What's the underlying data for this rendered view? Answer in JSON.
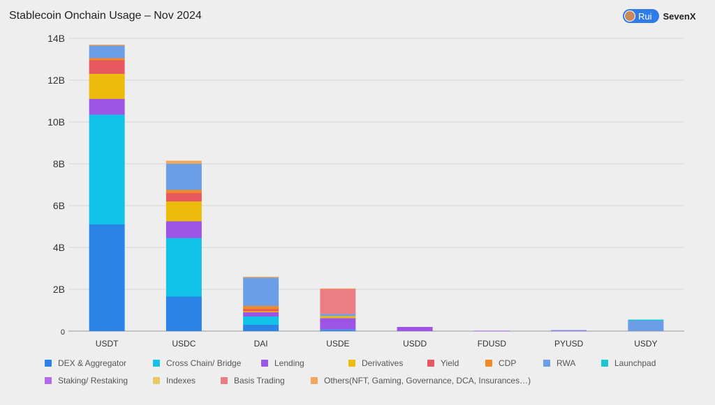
{
  "header": {
    "title": "Stablecoin Onchain Usage – Nov 2024",
    "author": "Rui",
    "company": "SevenX"
  },
  "chart_data": {
    "type": "stacked bar",
    "title": "Stablecoin Onchain Usage – Nov 2024",
    "xlabel": "",
    "ylabel": "",
    "ylim": [
      0,
      14
    ],
    "y_unit": "B",
    "yticks": [
      0,
      2,
      4,
      6,
      8,
      10,
      12,
      14
    ],
    "ytick_labels": [
      "0",
      "2B",
      "4B",
      "6B",
      "8B",
      "10B",
      "12B",
      "14B"
    ],
    "grid": true,
    "legend_position": "bottom",
    "categories": [
      "USDT",
      "USDC",
      "DAI",
      "USDE",
      "USDD",
      "FDUSD",
      "PYUSD",
      "USDY"
    ],
    "series": [
      {
        "name": "DEX & Aggregator",
        "color": "#2b83e6",
        "values": [
          5.1,
          1.65,
          0.3,
          0.05,
          0.0,
          0.0,
          0.0,
          0.0
        ]
      },
      {
        "name": "Cross Chain/ Bridge",
        "color": "#13c2e8",
        "values": [
          5.25,
          2.8,
          0.4,
          0.02,
          0.0,
          0.0,
          0.0,
          0.0
        ]
      },
      {
        "name": "Lending",
        "color": "#9d55e6",
        "values": [
          0.75,
          0.8,
          0.2,
          0.55,
          0.2,
          0.02,
          0.02,
          0.0
        ]
      },
      {
        "name": "Derivatives",
        "color": "#edbb0c",
        "values": [
          1.2,
          0.95,
          0.05,
          0.1,
          0.0,
          0.0,
          0.0,
          0.0
        ]
      },
      {
        "name": "Yield",
        "color": "#e85860",
        "values": [
          0.65,
          0.4,
          0.1,
          0.0,
          0.0,
          0.0,
          0.0,
          0.0
        ]
      },
      {
        "name": "CDP",
        "color": "#f08a24",
        "values": [
          0.1,
          0.15,
          0.15,
          0.0,
          0.0,
          0.0,
          0.0,
          0.0
        ]
      },
      {
        "name": "RWA",
        "color": "#6c9ee8",
        "values": [
          0.6,
          1.25,
          1.35,
          0.1,
          0.0,
          0.0,
          0.03,
          0.5
        ]
      },
      {
        "name": "Launchpad",
        "color": "#19c6d8",
        "values": [
          0.0,
          0.0,
          0.0,
          0.0,
          0.0,
          0.0,
          0.0,
          0.05
        ]
      },
      {
        "name": "Staking/ Restaking",
        "color": "#b36ae8",
        "values": [
          0.0,
          0.0,
          0.0,
          0.0,
          0.0,
          0.0,
          0.0,
          0.0
        ]
      },
      {
        "name": "Indexes",
        "color": "#e8c766",
        "values": [
          0.0,
          0.0,
          0.0,
          0.0,
          0.0,
          0.0,
          0.0,
          0.0
        ]
      },
      {
        "name": "Basis Trading",
        "color": "#eb7e84",
        "values": [
          0.0,
          0.0,
          0.0,
          1.2,
          0.0,
          0.0,
          0.0,
          0.0
        ]
      },
      {
        "name": "Others(NFT, Gaming, Governance, DCA, Insurances…)",
        "color": "#f2a65a",
        "values": [
          0.05,
          0.15,
          0.05,
          0.02,
          0.0,
          0.0,
          0.0,
          0.0
        ]
      }
    ]
  }
}
